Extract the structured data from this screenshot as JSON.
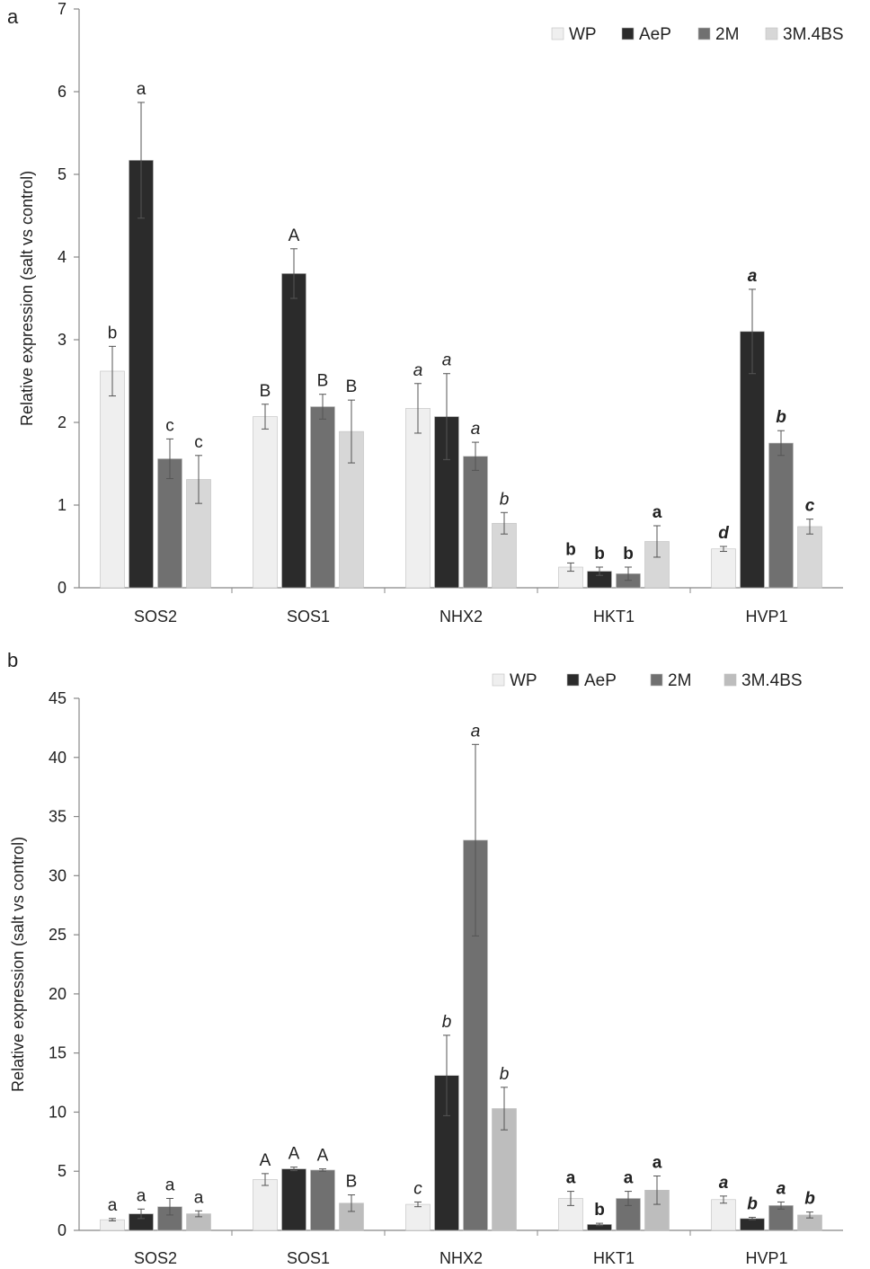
{
  "chart_data": [
    {
      "panel": "a",
      "type": "bar",
      "ylabel": "Relative expression (salt vs control)",
      "ylim": [
        0,
        7
      ],
      "yticks": [
        0,
        1,
        2,
        3,
        4,
        5,
        6,
        7
      ],
      "categories": [
        "SOS2",
        "SOS1",
        "NHX2",
        "HKT1",
        "HVP1"
      ],
      "legend_position": "top-right",
      "series": [
        {
          "name": "WP",
          "color": "#efefef",
          "values": [
            2.62,
            2.07,
            2.17,
            0.25,
            0.47
          ],
          "errors": [
            0.3,
            0.15,
            0.3,
            0.05,
            0.03
          ],
          "labels": [
            "b",
            "B",
            "a",
            "b",
            "d"
          ]
        },
        {
          "name": "AeP",
          "color": "#2b2b2b",
          "values": [
            5.17,
            3.8,
            2.07,
            0.2,
            3.1
          ],
          "errors": [
            0.7,
            0.3,
            0.52,
            0.05,
            0.51
          ],
          "labels": [
            "a",
            "A",
            "a",
            "b",
            "a"
          ]
        },
        {
          "name": "2M",
          "color": "#707070",
          "values": [
            1.56,
            2.19,
            1.59,
            0.17,
            1.75
          ],
          "errors": [
            0.24,
            0.15,
            0.17,
            0.08,
            0.15
          ],
          "labels": [
            "c",
            "B",
            "a",
            "b",
            "b"
          ]
        },
        {
          "name": "3M.4BS",
          "color": "#d7d7d7",
          "values": [
            1.31,
            1.89,
            0.78,
            0.56,
            0.74
          ],
          "errors": [
            0.29,
            0.38,
            0.13,
            0.19,
            0.09
          ],
          "labels": [
            "c",
            "B",
            "b",
            "a",
            "c"
          ]
        }
      ],
      "label_styles": [
        "plain",
        "plain",
        "italic",
        "bold",
        "bold-italic"
      ]
    },
    {
      "panel": "b",
      "type": "bar",
      "ylabel": "Relative expression (salt vs control)",
      "ylim": [
        0,
        45
      ],
      "yticks": [
        0,
        5,
        10,
        15,
        20,
        25,
        30,
        35,
        40,
        45
      ],
      "categories": [
        "SOS2",
        "SOS1",
        "NHX2",
        "HKT1",
        "HVP1"
      ],
      "legend_position": "top-right",
      "series": [
        {
          "name": "WP",
          "color": "#efefef",
          "values": [
            0.9,
            4.3,
            2.2,
            2.7,
            2.6
          ],
          "errors": [
            0.1,
            0.5,
            0.2,
            0.6,
            0.3
          ],
          "labels": [
            "a",
            "A",
            "c",
            "a",
            "a"
          ]
        },
        {
          "name": "AeP",
          "color": "#2b2b2b",
          "values": [
            1.4,
            5.2,
            13.1,
            0.5,
            1.0
          ],
          "errors": [
            0.4,
            0.15,
            3.4,
            0.1,
            0.1
          ],
          "labels": [
            "a",
            "A",
            "b",
            "b",
            "b"
          ]
        },
        {
          "name": "2M",
          "color": "#707070",
          "values": [
            2.0,
            5.1,
            33.0,
            2.7,
            2.1
          ],
          "errors": [
            0.7,
            0.1,
            8.1,
            0.6,
            0.3
          ],
          "labels": [
            "a",
            "A",
            "a",
            "a",
            "a"
          ]
        },
        {
          "name": "3M.4BS",
          "color": "#bdbdbd",
          "values": [
            1.4,
            2.3,
            10.3,
            3.4,
            1.3
          ],
          "errors": [
            0.25,
            0.7,
            1.8,
            1.2,
            0.25
          ],
          "labels": [
            "a",
            "B",
            "b",
            "a",
            "b"
          ]
        }
      ],
      "label_styles": [
        "plain",
        "plain",
        "italic",
        "bold",
        "bold-italic"
      ]
    }
  ]
}
